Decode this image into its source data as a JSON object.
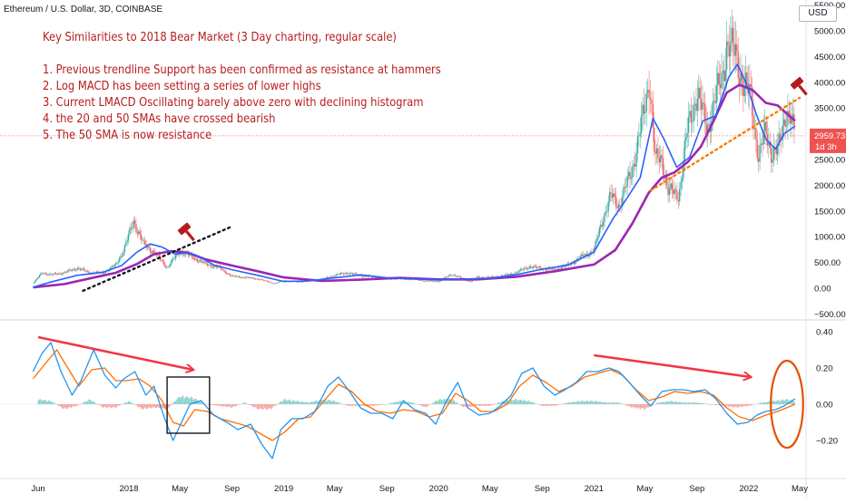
{
  "header": {
    "ticker_label": "Ethereum / U.S. Dollar, 3D, COINBASE",
    "currency_button": "USD"
  },
  "annotations": {
    "title": "Key Similarities to 2018 Bear Market (3 Day charting, regular scale)",
    "points": [
      "1. Previous trendline Support has been confirmed as resistance at hammers",
      "2. Log MACD has been setting a series of lower highs",
      "3. Current LMACD Oscillating barely above zero with declining histogram",
      "4. the 20 and 50 SMAs have crossed bearish",
      "5. The 50 SMA is now resistance"
    ]
  },
  "colors": {
    "sma20": "#2962ff",
    "sma50": "#9c27b0",
    "candle_up": "#26a69a",
    "candle_down": "#ef5350",
    "macd_line": "#2196f3",
    "signal_line": "#ff6d00",
    "hist_up": "#26a69a",
    "hist_down": "#ef5350",
    "trendline_2018": "#131722",
    "trendline_2021": "#f57c00",
    "arrow": "#f23645",
    "ellipse": "#e65100",
    "hammer": "#b71c1c",
    "price_tag": "#ef5350"
  },
  "chart_data": [
    {
      "type": "line",
      "title": "Ethereum / U.S. Dollar, 3D, COINBASE",
      "x_tick_labels": [
        "Jun",
        "2018",
        "May",
        "Sep",
        "2019",
        "May",
        "Sep",
        "2020",
        "May",
        "Sep",
        "2021",
        "May",
        "Sep",
        "2022",
        "May"
      ],
      "x_tick_dates": [
        "2017-06-01",
        "2018-01-01",
        "2018-05-01",
        "2018-09-01",
        "2019-01-01",
        "2019-05-01",
        "2019-09-01",
        "2020-01-01",
        "2020-05-01",
        "2020-09-01",
        "2021-01-01",
        "2021-05-01",
        "2021-09-01",
        "2022-01-01",
        "2022-05-01"
      ],
      "y_tick_labels": [
        "5500.00",
        "5000.00",
        "4500.00",
        "4000.00",
        "3500.00",
        "3000.00",
        "2500.00",
        "2000.00",
        "1500.00",
        "1000.00",
        "500.00",
        "0.00",
        "−500.00"
      ],
      "y_ticks": [
        5500,
        5000,
        4500,
        4000,
        3500,
        3000,
        2500,
        2000,
        1500,
        1000,
        500,
        0,
        -500
      ],
      "ylim": [
        -500,
        5600
      ],
      "last_price_label": "2959.73",
      "last_price": 2959.73,
      "countdown_label": "1d 3h",
      "series": [
        {
          "name": "",
          "style": "price",
          "x": [
            "2017-05-20",
            "2017-06-10",
            "2017-07-01",
            "2017-08-01",
            "2017-09-01",
            "2017-10-01",
            "2017-11-01",
            "2017-12-01",
            "2017-12-20",
            "2018-01-12",
            "2018-02-05",
            "2018-03-01",
            "2018-04-01",
            "2018-05-01",
            "2018-06-01",
            "2018-07-01",
            "2018-08-01",
            "2018-09-01",
            "2018-10-01",
            "2018-11-01",
            "2018-12-10",
            "2019-01-01",
            "2019-02-01",
            "2019-03-01",
            "2019-04-01",
            "2019-05-01",
            "2019-06-01",
            "2019-07-01",
            "2019-08-01",
            "2019-09-01",
            "2019-10-01",
            "2019-11-01",
            "2019-12-01",
            "2020-01-01",
            "2020-02-01",
            "2020-03-15",
            "2020-04-01",
            "2020-05-01",
            "2020-06-01",
            "2020-07-01",
            "2020-08-01",
            "2020-09-01",
            "2020-10-01",
            "2020-11-01",
            "2020-12-01",
            "2021-01-01",
            "2021-01-20",
            "2021-02-10",
            "2021-03-01",
            "2021-04-01",
            "2021-05-01",
            "2021-05-12",
            "2021-05-25",
            "2021-06-10",
            "2021-06-25",
            "2021-07-20",
            "2021-08-10",
            "2021-09-01",
            "2021-09-25",
            "2021-10-15",
            "2021-11-01",
            "2021-11-10",
            "2021-12-01",
            "2021-12-20",
            "2022-01-05",
            "2022-01-24",
            "2022-02-10",
            "2022-02-24",
            "2022-03-10",
            "2022-03-28",
            "2022-04-08",
            "2022-04-20"
          ],
          "values": [
            90,
            300,
            260,
            300,
            390,
            300,
            300,
            450,
            750,
            1300,
            850,
            700,
            400,
            720,
            600,
            470,
            400,
            230,
            210,
            180,
            90,
            150,
            120,
            140,
            170,
            250,
            300,
            240,
            220,
            190,
            180,
            175,
            140,
            130,
            270,
            130,
            210,
            210,
            240,
            300,
            420,
            380,
            360,
            450,
            600,
            730,
            1300,
            1800,
            1600,
            2300,
            3500,
            4100,
            2500,
            2500,
            1900,
            1800,
            3100,
            3800,
            3100,
            3700,
            4200,
            4700,
            4600,
            3900,
            3800,
            2500,
            3100,
            2600,
            2650,
            3400,
            3300,
            2959.73
          ]
        },
        {
          "name": "",
          "style": "sma20",
          "x": [
            "2017-05-20",
            "2017-07-01",
            "2017-09-01",
            "2017-11-01",
            "2017-12-15",
            "2018-01-20",
            "2018-02-20",
            "2018-03-20",
            "2018-04-20",
            "2018-05-20",
            "2018-06-20",
            "2018-07-20",
            "2018-09-01",
            "2018-11-01",
            "2019-01-01",
            "2019-03-01",
            "2019-05-01",
            "2019-07-01",
            "2019-09-01",
            "2019-11-01",
            "2020-01-01",
            "2020-03-01",
            "2020-05-01",
            "2020-07-01",
            "2020-09-01",
            "2020-11-01",
            "2021-01-01",
            "2021-02-15",
            "2021-03-20",
            "2021-04-20",
            "2021-05-20",
            "2021-06-15",
            "2021-07-15",
            "2021-08-15",
            "2021-09-15",
            "2021-10-15",
            "2021-11-15",
            "2021-12-05",
            "2021-12-25",
            "2022-01-20",
            "2022-02-10",
            "2022-03-05",
            "2022-03-25",
            "2022-04-20"
          ],
          "values": [
            20,
            120,
            250,
            310,
            440,
            700,
            860,
            800,
            660,
            700,
            600,
            450,
            360,
            250,
            130,
            140,
            200,
            260,
            200,
            180,
            160,
            180,
            190,
            260,
            370,
            450,
            700,
            1350,
            1750,
            2150,
            3300,
            2900,
            2350,
            2550,
            3250,
            3350,
            4100,
            4350,
            4000,
            3350,
            2900,
            2700,
            3000,
            3150
          ]
        },
        {
          "name": "",
          "style": "sma50",
          "x": [
            "2017-05-20",
            "2017-08-01",
            "2017-10-01",
            "2017-12-01",
            "2018-01-20",
            "2018-03-01",
            "2018-04-10",
            "2018-05-20",
            "2018-07-01",
            "2018-09-01",
            "2018-11-01",
            "2019-01-01",
            "2019-04-01",
            "2019-07-01",
            "2019-10-01",
            "2020-01-01",
            "2020-04-01",
            "2020-07-01",
            "2020-10-01",
            "2021-01-01",
            "2021-02-20",
            "2021-04-01",
            "2021-05-10",
            "2021-06-10",
            "2021-07-10",
            "2021-08-10",
            "2021-09-10",
            "2021-10-10",
            "2021-11-10",
            "2021-12-10",
            "2022-01-10",
            "2022-02-10",
            "2022-03-10",
            "2022-04-20"
          ],
          "values": [
            15,
            80,
            190,
            300,
            470,
            660,
            720,
            690,
            560,
            440,
            330,
            210,
            140,
            165,
            200,
            170,
            170,
            220,
            330,
            460,
            740,
            1250,
            1850,
            2150,
            2250,
            2450,
            2750,
            3250,
            3800,
            3950,
            3850,
            3600,
            3550,
            3250
          ]
        }
      ],
      "trendlines": [
        {
          "name": "",
          "x": [
            "2017-09-15",
            "2018-09-01"
          ],
          "y": [
            -50,
            1200
          ],
          "style": "dotted"
        },
        {
          "name": "",
          "x": [
            "2021-05-15",
            "2022-05-01"
          ],
          "y": [
            1900,
            3700
          ],
          "style": "dotted"
        }
      ],
      "markers": [
        {
          "type": "hammer",
          "x": "2018-05-15",
          "y": 1120
        },
        {
          "type": "hammer",
          "x": "2022-04-28",
          "y": 3950
        }
      ]
    },
    {
      "type": "line",
      "title": "",
      "y_tick_labels": [
        "0.40",
        "0.20",
        "0.00",
        "−0.20"
      ],
      "y_ticks": [
        0.4,
        0.2,
        0,
        -0.2
      ],
      "ylim": [
        -0.32,
        0.42
      ],
      "series": [
        {
          "name": "",
          "style": "macd",
          "x": [
            "2017-05-20",
            "2017-06-10",
            "2017-07-01",
            "2017-07-25",
            "2017-08-20",
            "2017-09-10",
            "2017-10-10",
            "2017-11-05",
            "2017-12-01",
            "2017-12-20",
            "2018-01-15",
            "2018-02-10",
            "2018-03-01",
            "2018-03-25",
            "2018-04-15",
            "2018-05-05",
            "2018-05-25",
            "2018-06-20",
            "2018-07-20",
            "2018-08-20",
            "2018-09-15",
            "2018-10-15",
            "2018-11-10",
            "2018-12-05",
            "2018-12-25",
            "2019-01-20",
            "2019-02-15",
            "2019-03-15",
            "2019-04-15",
            "2019-05-10",
            "2019-06-05",
            "2019-07-01",
            "2019-07-25",
            "2019-08-20",
            "2019-09-15",
            "2019-10-10",
            "2019-11-05",
            "2019-12-01",
            "2019-12-25",
            "2020-01-20",
            "2020-02-15",
            "2020-03-10",
            "2020-04-05",
            "2020-05-01",
            "2020-05-25",
            "2020-06-20",
            "2020-07-15",
            "2020-08-10",
            "2020-09-05",
            "2020-10-01",
            "2020-10-25",
            "2020-11-20",
            "2020-12-15",
            "2021-01-10",
            "2021-02-05",
            "2021-03-01",
            "2021-03-25",
            "2021-04-20",
            "2021-05-15",
            "2021-06-10",
            "2021-07-05",
            "2021-07-30",
            "2021-08-25",
            "2021-09-20",
            "2021-10-15",
            "2021-11-10",
            "2021-12-05",
            "2021-12-30",
            "2022-01-20",
            "2022-02-10",
            "2022-03-05",
            "2022-03-25",
            "2022-04-20"
          ],
          "values": [
            0.18,
            0.28,
            0.34,
            0.18,
            0.05,
            0.13,
            0.3,
            0.16,
            0.09,
            0.14,
            0.18,
            0.05,
            0.1,
            -0.07,
            -0.2,
            -0.1,
            0.0,
            0.02,
            -0.06,
            -0.1,
            -0.14,
            -0.11,
            -0.22,
            -0.3,
            -0.14,
            -0.08,
            -0.08,
            -0.04,
            0.1,
            0.15,
            0.07,
            -0.02,
            -0.05,
            -0.05,
            -0.08,
            0.02,
            -0.03,
            -0.05,
            -0.11,
            0.02,
            0.12,
            -0.02,
            -0.06,
            -0.05,
            -0.01,
            0.05,
            0.17,
            0.2,
            0.1,
            0.05,
            0.08,
            0.12,
            0.18,
            0.18,
            0.2,
            0.18,
            0.12,
            0.05,
            -0.01,
            0.07,
            0.08,
            0.08,
            0.07,
            0.08,
            0.03,
            -0.05,
            -0.11,
            -0.1,
            -0.06,
            -0.04,
            -0.03,
            -0.01,
            0.03
          ]
        },
        {
          "name": "",
          "style": "signal",
          "x": [
            "2017-05-20",
            "2017-06-20",
            "2017-07-15",
            "2017-08-10",
            "2017-09-05",
            "2017-10-05",
            "2017-11-05",
            "2017-12-01",
            "2017-12-25",
            "2018-01-25",
            "2018-02-20",
            "2018-03-20",
            "2018-04-15",
            "2018-05-10",
            "2018-06-05",
            "2018-07-05",
            "2018-08-05",
            "2018-09-05",
            "2018-10-05",
            "2018-11-05",
            "2018-12-05",
            "2019-01-05",
            "2019-02-05",
            "2019-03-05",
            "2019-04-10",
            "2019-05-10",
            "2019-06-10",
            "2019-07-10",
            "2019-08-10",
            "2019-09-10",
            "2019-10-10",
            "2019-11-10",
            "2019-12-10",
            "2020-01-10",
            "2020-02-10",
            "2020-03-10",
            "2020-04-10",
            "2020-05-10",
            "2020-06-10",
            "2020-07-10",
            "2020-08-10",
            "2020-09-10",
            "2020-10-10",
            "2020-11-10",
            "2020-12-10",
            "2021-01-10",
            "2021-02-10",
            "2021-03-10",
            "2021-04-10",
            "2021-05-10",
            "2021-06-10",
            "2021-07-10",
            "2021-08-10",
            "2021-09-10",
            "2021-10-10",
            "2021-11-10",
            "2021-12-10",
            "2022-01-10",
            "2022-02-10",
            "2022-03-10",
            "2022-04-20"
          ],
          "values": [
            0.14,
            0.23,
            0.3,
            0.2,
            0.1,
            0.19,
            0.2,
            0.13,
            0.13,
            0.14,
            0.1,
            0.02,
            -0.1,
            -0.12,
            -0.03,
            -0.04,
            -0.08,
            -0.1,
            -0.12,
            -0.16,
            -0.2,
            -0.15,
            -0.08,
            -0.07,
            0.03,
            0.11,
            0.07,
            0.0,
            -0.04,
            -0.05,
            -0.03,
            -0.04,
            -0.07,
            -0.05,
            0.06,
            0.02,
            -0.04,
            -0.04,
            0.0,
            0.1,
            0.16,
            0.12,
            0.07,
            0.1,
            0.15,
            0.17,
            0.19,
            0.16,
            0.08,
            0.02,
            0.04,
            0.07,
            0.06,
            0.07,
            0.05,
            -0.02,
            -0.07,
            -0.09,
            -0.06,
            -0.04,
            0.0
          ]
        }
      ],
      "histogram": {
        "x": [
          "2017-06-01",
          "2017-07-01",
          "2017-08-01",
          "2017-09-01",
          "2017-10-01",
          "2017-11-01",
          "2017-12-01",
          "2018-01-01",
          "2018-02-01",
          "2018-03-01",
          "2018-04-01",
          "2018-05-01",
          "2018-06-01",
          "2018-07-01",
          "2018-08-01",
          "2018-09-01",
          "2018-10-01",
          "2018-11-01",
          "2018-12-01",
          "2019-01-01",
          "2019-02-01",
          "2019-03-01",
          "2019-04-01",
          "2019-05-01",
          "2019-06-01",
          "2019-07-01",
          "2019-08-01",
          "2019-09-01",
          "2019-10-01",
          "2019-11-01",
          "2019-12-01",
          "2020-01-01",
          "2020-02-01",
          "2020-03-01",
          "2020-04-01",
          "2020-05-01",
          "2020-06-01",
          "2020-07-01",
          "2020-08-01",
          "2020-09-01",
          "2020-10-01",
          "2020-11-01",
          "2020-12-01",
          "2021-01-01",
          "2021-02-01",
          "2021-03-01",
          "2021-04-01",
          "2021-05-01",
          "2021-06-01",
          "2021-07-01",
          "2021-08-01",
          "2021-09-01",
          "2021-10-01",
          "2021-11-01",
          "2021-12-01",
          "2022-01-01",
          "2022-02-01",
          "2022-03-01",
          "2022-04-01",
          "2022-04-20"
        ],
        "values": [
          0.03,
          0.02,
          -0.03,
          -0.01,
          0.03,
          -0.02,
          -0.02,
          0.02,
          -0.03,
          -0.02,
          -0.03,
          0.05,
          0.04,
          0.0,
          -0.01,
          -0.02,
          0.01,
          -0.03,
          -0.03,
          0.03,
          0.02,
          0.01,
          0.03,
          0.02,
          -0.01,
          -0.01,
          -0.01,
          0.0,
          0.02,
          0.01,
          -0.02,
          0.03,
          0.03,
          -0.02,
          -0.01,
          -0.01,
          0.02,
          0.03,
          0.02,
          -0.01,
          -0.01,
          0.01,
          0.02,
          0.02,
          0.01,
          0.01,
          -0.02,
          -0.03,
          0.01,
          0.02,
          0.01,
          0.01,
          0.0,
          -0.01,
          -0.02,
          -0.01,
          0.01,
          0.02,
          0.03,
          0.02
        ]
      },
      "arrows": [
        {
          "from": [
            "2017-06-01",
            0.37
          ],
          "to": [
            "2018-06-01",
            0.19
          ]
        },
        {
          "from": [
            "2021-01-01",
            0.27
          ],
          "to": [
            "2022-01-05",
            0.15
          ]
        }
      ],
      "box": {
        "x": [
          "2018-04-01",
          "2018-07-10"
        ],
        "y": [
          -0.16,
          0.15
        ]
      },
      "ellipse": {
        "center": [
          "2022-04-01",
          0.0
        ],
        "rx_days": 38,
        "ry": 0.24
      }
    }
  ]
}
